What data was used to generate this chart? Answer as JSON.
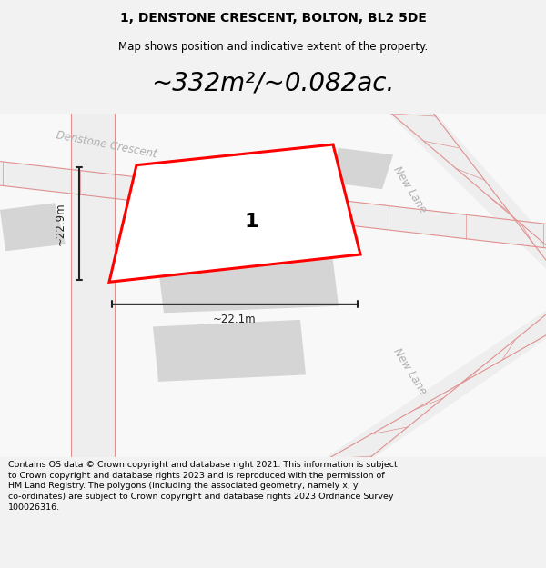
{
  "title": "1, DENSTONE CRESCENT, BOLTON, BL2 5DE",
  "subtitle": "Map shows position and indicative extent of the property.",
  "area_text": "~332m²/~0.082ac.",
  "label_1": "1",
  "dim_width": "~22.1m",
  "dim_height": "~22.9m",
  "street_denstone": "Denstone Crescent",
  "street_newlane1": "New Lane",
  "street_newlane2": "New Lane",
  "footer": "Contains OS data © Crown copyright and database right 2021. This information is subject\nto Crown copyright and database rights 2023 and is reproduced with the permission of\nHM Land Registry. The polygons (including the associated geometry, namely x, y\nco-ordinates) are subject to Crown copyright and database rights 2023 Ordnance Survey\n100026316.",
  "bg_color": "#f2f2f2",
  "map_bg": "#f8f8f8",
  "road_fill": "#eeeeee",
  "road_stroke": "#e09090",
  "building_fill": "#d5d5d5",
  "plot_stroke": "#ff0000",
  "plot_fill": "#ffffff",
  "dim_color": "#222222",
  "street_label_color": "#b0b0b0",
  "title_color": "#000000",
  "footer_color": "#000000"
}
